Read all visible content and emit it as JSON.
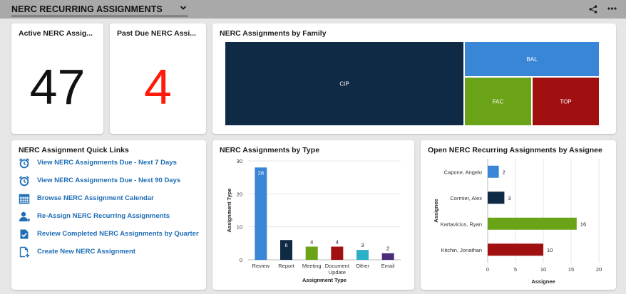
{
  "header": {
    "title": "NERC RECURRING ASSIGNMENTS"
  },
  "icons": {
    "share": "share-icon",
    "more": "more-icon",
    "chevron": "chevron-down-icon"
  },
  "kpi_active": {
    "title": "Active NERC Assig...",
    "value": "47",
    "color": "#111111"
  },
  "kpi_pastdue": {
    "title": "Past Due NERC Assi...",
    "value": "4",
    "color": "#ff1a0a"
  },
  "family": {
    "title": "NERC Assignments by Family"
  },
  "quick_links": {
    "title": "NERC Assignment Quick Links",
    "items": [
      {
        "label": "View NERC Assignments Due - Next 7 Days",
        "icon": "alarm-clock-icon"
      },
      {
        "label": "View NERC Assignments Due - Next 90 Days",
        "icon": "alarm-clock-icon"
      },
      {
        "label": "Browse NERC Assignment Calendar",
        "icon": "calendar-icon"
      },
      {
        "label": "Re-Assign NERC Recurring Assignments",
        "icon": "reassign-user-icon"
      },
      {
        "label": "Review Completed NERC Assignments by Quarter",
        "icon": "checked-document-icon"
      },
      {
        "label": "Create New NERC Assignment",
        "icon": "new-document-icon"
      }
    ]
  },
  "by_type": {
    "title": "NERC Assignments by Type"
  },
  "by_assignee": {
    "title": "Open NERC Recurring Assignments by Assignee"
  },
  "chart_data": [
    {
      "type": "treemap",
      "title": "NERC Assignments by Family",
      "categories": [
        "CIP",
        "BAL",
        "FAC",
        "TOP"
      ],
      "values": [
        30,
        7,
        5,
        5
      ],
      "colors": [
        "#0f2a45",
        "#3a86d6",
        "#6ba318",
        "#a01010"
      ]
    },
    {
      "type": "bar",
      "title": "NERC Assignments by Type",
      "categories": [
        "Review",
        "Report",
        "Meeting",
        "Document Update",
        "Other",
        "Email"
      ],
      "values": [
        28,
        6,
        4,
        4,
        3,
        2
      ],
      "colors": [
        "#3a86d6",
        "#0f2a45",
        "#6ba318",
        "#a01010",
        "#2bb0c8",
        "#4a2c7a"
      ],
      "xlabel": "Assignment Type",
      "ylabel": "Assignment Type",
      "ylim": [
        0,
        30
      ],
      "yticks": [
        "0",
        "10",
        "20",
        "30"
      ]
    },
    {
      "type": "bar",
      "orientation": "horizontal",
      "title": "Open NERC Recurring Assignments by Assignee",
      "categories": [
        "Capone, Angelo",
        "Cormier, Alex",
        "Kartavicius, Ryan",
        "Kitchin, Jonathan"
      ],
      "values": [
        2,
        3,
        16,
        10
      ],
      "colors": [
        "#3a86d6",
        "#0f2a45",
        "#6ba318",
        "#a01010"
      ],
      "xlabel": "Assignee",
      "ylabel": "Assignee",
      "xlim": [
        0,
        20
      ],
      "xticks": [
        "0",
        "5",
        "10",
        "15",
        "20"
      ]
    }
  ]
}
